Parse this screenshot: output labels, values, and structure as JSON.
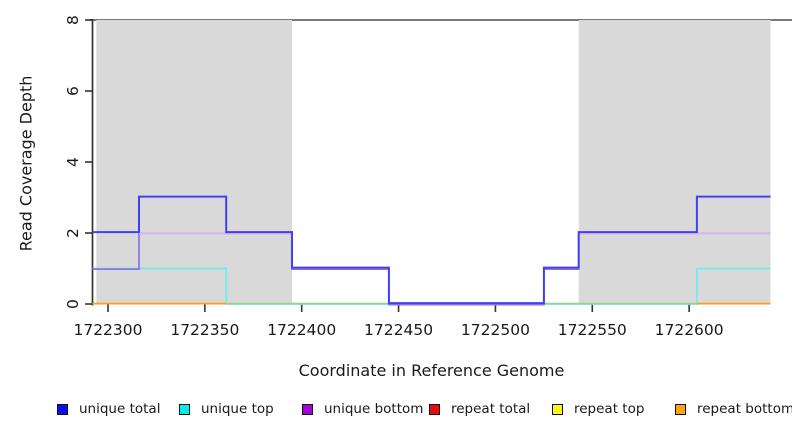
{
  "figure": {
    "kind": "read-coverage-step-plot"
  },
  "y_axis": {
    "title": "Read Coverage Depth",
    "ticks": [
      0,
      2,
      4,
      6,
      8
    ],
    "lim": [
      0,
      8
    ]
  },
  "x_axis": {
    "title": "Coordinate in Reference Genome",
    "ticks": [
      1722300,
      1722350,
      1722400,
      1722450,
      1722500,
      1722550,
      1722600
    ],
    "lim": [
      1722292,
      1722642
    ]
  },
  "chart_data": {
    "type": "line",
    "subtype": "step",
    "title": "",
    "xlabel": "Coordinate in Reference Genome",
    "ylabel": "Read Coverage Depth",
    "xlim": [
      1722292,
      1722642
    ],
    "ylim": [
      0,
      8
    ],
    "grid": false,
    "legend_position": "bottom",
    "top_rule": {
      "y": 8,
      "color": "#4d4d4d",
      "full_width": true
    },
    "region_fill": "#d9d9d9",
    "shaded_regions": [
      [
        1722294,
        1722395
      ],
      [
        1722543,
        1722642
      ]
    ],
    "series": [
      {
        "name": "unique total",
        "color": "#4040f2",
        "render": true,
        "points": [
          [
            1722292,
            2
          ],
          [
            1722316,
            2
          ],
          [
            1722316,
            3
          ],
          [
            1722361,
            3
          ],
          [
            1722361,
            2
          ],
          [
            1722395,
            2
          ],
          [
            1722395,
            1
          ],
          [
            1722445,
            1
          ],
          [
            1722445,
            0
          ],
          [
            1722525,
            0
          ],
          [
            1722525,
            1
          ],
          [
            1722543,
            1
          ],
          [
            1722543,
            2
          ],
          [
            1722604,
            2
          ],
          [
            1722604,
            3
          ],
          [
            1722642,
            3
          ]
        ]
      },
      {
        "name": "unique top",
        "color": "#6ceef0",
        "render": true,
        "points": [
          [
            1722292,
            1
          ],
          [
            1722361,
            1
          ],
          [
            1722361,
            0
          ],
          [
            1722604,
            0
          ],
          [
            1722604,
            1
          ],
          [
            1722642,
            1
          ]
        ]
      },
      {
        "name": "unique bottom",
        "color": "#8a74e8",
        "color_depth2": "#d6b6f6",
        "render": true,
        "points": [
          [
            1722292,
            1
          ],
          [
            1722316,
            1
          ],
          [
            1722316,
            2
          ],
          [
            1722395,
            2
          ],
          [
            1722395,
            1
          ],
          [
            1722445,
            1
          ],
          [
            1722445,
            0
          ],
          [
            1722525,
            0
          ],
          [
            1722525,
            1
          ],
          [
            1722543,
            1
          ],
          [
            1722543,
            2
          ],
          [
            1722642,
            2
          ]
        ]
      },
      {
        "name": "repeat total",
        "color": "#ea0a0a",
        "render": false,
        "points": [
          [
            1722292,
            0
          ],
          [
            1722642,
            0
          ]
        ]
      },
      {
        "name": "repeat top",
        "color": "#fdf50a",
        "render": false,
        "points": [
          [
            1722292,
            0
          ],
          [
            1722642,
            0
          ]
        ]
      },
      {
        "name": "repeat bottom",
        "color": "#fda50f",
        "render": false,
        "points": [
          [
            1722292,
            0
          ],
          [
            1722642,
            0
          ]
        ]
      }
    ],
    "baseline_segments": [
      {
        "x": [
          1722292,
          1722361
        ],
        "color": "#ff9e1b"
      },
      {
        "x": [
          1722361,
          1722604
        ],
        "color": "#8fd48f"
      },
      {
        "x": [
          1722604,
          1722642
        ],
        "color": "#ff9e1b"
      }
    ]
  },
  "legend": {
    "items": [
      {
        "label": "unique total",
        "color": "#0d0df0"
      },
      {
        "label": "unique top",
        "color": "#00eded"
      },
      {
        "label": "unique bottom",
        "color": "#a303d6"
      },
      {
        "label": "repeat total",
        "color": "#ea0a0a"
      },
      {
        "label": "repeat top",
        "color": "#fdf50a"
      },
      {
        "label": "repeat bottom",
        "color": "#fda50f"
      }
    ]
  }
}
